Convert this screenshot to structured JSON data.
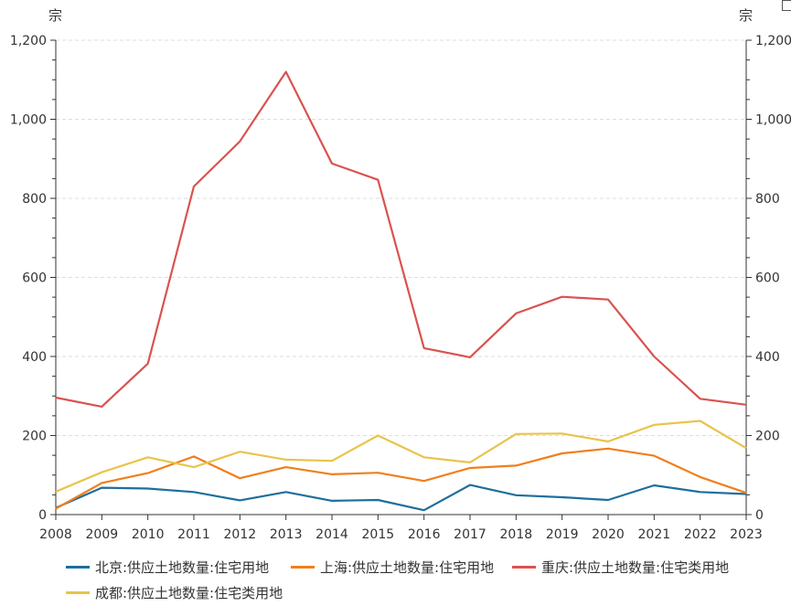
{
  "chart_data": {
    "type": "line",
    "unit_left": "宗",
    "unit_right": "宗",
    "categories": [
      "2008",
      "2009",
      "2010",
      "2011",
      "2012",
      "2013",
      "2014",
      "2015",
      "2016",
      "2017",
      "2018",
      "2019",
      "2020",
      "2021",
      "2022",
      "2023"
    ],
    "ylim": [
      0,
      1200
    ],
    "yticks": [
      0,
      200,
      400,
      600,
      800,
      1000,
      1200
    ],
    "ytick_labels": [
      "0",
      "200",
      "400",
      "600",
      "800",
      "1,000",
      "1,200"
    ],
    "grid": true,
    "legend_position": "bottom",
    "series": [
      {
        "name": "北京:供应土地数量:住宅用地",
        "color": "#1f6e9c",
        "values": [
          17,
          68,
          66,
          57,
          36,
          57,
          35,
          37,
          11,
          75,
          49,
          44,
          37,
          74,
          57,
          52
        ]
      },
      {
        "name": "上海:供应土地数量:住宅用地",
        "color": "#f07f1b",
        "values": [
          15,
          80,
          105,
          147,
          92,
          120,
          102,
          106,
          85,
          118,
          124,
          155,
          167,
          149,
          95,
          55
        ]
      },
      {
        "name": "重庆:供应土地数量:住宅类用地",
        "color": "#d9534f",
        "values": [
          296,
          273,
          382,
          830,
          944,
          1120,
          888,
          847,
          421,
          398,
          509,
          551,
          544,
          400,
          293,
          278
        ]
      },
      {
        "name": "成都:供应土地数量:住宅类用地",
        "color": "#e8c44a",
        "values": [
          58,
          107,
          145,
          120,
          159,
          139,
          136,
          200,
          145,
          132,
          204,
          205,
          185,
          227,
          237,
          168
        ]
      }
    ]
  }
}
